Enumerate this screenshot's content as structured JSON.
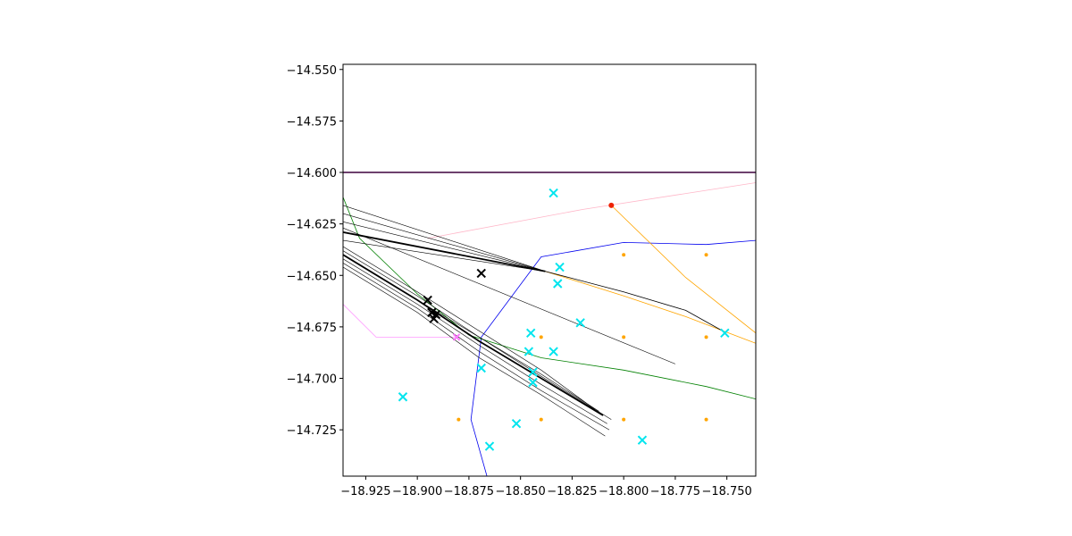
{
  "chart_data": {
    "type": "line",
    "title": "",
    "xlabel": "",
    "ylabel": "",
    "xlim": [
      -18.936,
      -18.736
    ],
    "ylim": [
      -14.7475,
      -14.5475
    ],
    "grid": false,
    "x_ticks": [
      -18.925,
      -18.9,
      -18.875,
      -18.85,
      -18.825,
      -18.8,
      -18.775,
      -18.75
    ],
    "x_tick_labels": [
      "−18.925",
      "−18.900",
      "−18.875",
      "−18.850",
      "−18.825",
      "−18.800",
      "−18.775",
      "−18.750"
    ],
    "y_ticks": [
      -14.55,
      -14.575,
      -14.6,
      -14.625,
      -14.65,
      -14.675,
      -14.7,
      -14.725
    ],
    "y_tick_labels": [
      "−14.550",
      "−14.575",
      "−14.600",
      "−14.625",
      "−14.650",
      "−14.675",
      "−14.700",
      "−14.725"
    ],
    "series": [
      {
        "color": "#3d003d",
        "width": 1.6,
        "points": [
          [
            -18.936,
            -14.6
          ],
          [
            -18.736,
            -14.6
          ]
        ]
      },
      {
        "color": "#ffb6c8",
        "width": 0.8,
        "points": [
          [
            -18.895,
            -14.632
          ],
          [
            -18.82,
            -14.618
          ],
          [
            -18.736,
            -14.605
          ]
        ]
      },
      {
        "color": "#ff99ff",
        "width": 0.8,
        "points": [
          [
            -18.936,
            -14.664
          ],
          [
            -18.92,
            -14.68
          ],
          [
            -18.882,
            -14.68
          ]
        ]
      },
      {
        "color": "#0000ee",
        "width": 0.8,
        "points": [
          [
            -18.865,
            -14.752
          ],
          [
            -18.874,
            -14.72
          ],
          [
            -18.869,
            -14.68
          ],
          [
            -18.84,
            -14.641
          ],
          [
            -18.8,
            -14.634
          ],
          [
            -18.76,
            -14.635
          ],
          [
            -18.736,
            -14.633
          ]
        ]
      },
      {
        "color": "#008000",
        "width": 0.8,
        "points": [
          [
            -18.936,
            -14.612
          ],
          [
            -18.928,
            -14.632
          ],
          [
            -18.9,
            -14.659
          ],
          [
            -18.875,
            -14.679
          ],
          [
            -18.84,
            -14.69
          ],
          [
            -18.8,
            -14.696
          ],
          [
            -18.76,
            -14.704
          ],
          [
            -18.736,
            -14.71
          ]
        ]
      },
      {
        "color": "#ffa500",
        "width": 0.8,
        "points": [
          [
            -18.806,
            -14.616
          ],
          [
            -18.77,
            -14.651
          ],
          [
            -18.736,
            -14.678
          ]
        ]
      },
      {
        "color": "#ffa500",
        "width": 0.8,
        "points": [
          [
            -18.838,
            -14.648
          ],
          [
            -18.8,
            -14.66
          ],
          [
            -18.77,
            -14.67
          ],
          [
            -18.736,
            -14.683
          ]
        ]
      },
      {
        "color": "#000000",
        "width": 1.8,
        "points": [
          [
            -18.936,
            -14.629
          ],
          [
            -18.838,
            -14.648
          ]
        ]
      },
      {
        "color": "#000000",
        "width": 0.8,
        "points": [
          [
            -18.838,
            -14.648
          ],
          [
            -18.8,
            -14.658
          ],
          [
            -18.77,
            -14.667
          ],
          [
            -18.752,
            -14.677
          ]
        ]
      },
      {
        "color": "#000000",
        "width": 0.6,
        "points": [
          [
            -18.936,
            -14.616
          ],
          [
            -18.838,
            -14.648
          ]
        ]
      },
      {
        "color": "#000000",
        "width": 0.6,
        "points": [
          [
            -18.936,
            -14.62
          ],
          [
            -18.838,
            -14.648
          ]
        ]
      },
      {
        "color": "#000000",
        "width": 0.6,
        "points": [
          [
            -18.936,
            -14.624
          ],
          [
            -18.838,
            -14.648
          ]
        ]
      },
      {
        "color": "#000000",
        "width": 0.6,
        "points": [
          [
            -18.936,
            -14.633
          ],
          [
            -18.838,
            -14.648
          ]
        ]
      },
      {
        "color": "#000000",
        "width": 0.6,
        "points": [
          [
            -18.936,
            -14.627
          ],
          [
            -18.775,
            -14.693
          ]
        ]
      },
      {
        "color": "#000000",
        "width": 1.8,
        "points": [
          [
            -18.936,
            -14.64
          ],
          [
            -18.9,
            -14.662
          ],
          [
            -18.87,
            -14.682
          ],
          [
            -18.84,
            -14.7
          ],
          [
            -18.81,
            -14.718
          ]
        ]
      },
      {
        "color": "#000000",
        "width": 0.6,
        "points": [
          [
            -18.936,
            -14.638
          ],
          [
            -18.9,
            -14.66
          ],
          [
            -18.87,
            -14.68
          ],
          [
            -18.84,
            -14.698
          ],
          [
            -18.812,
            -14.716
          ]
        ]
      },
      {
        "color": "#000000",
        "width": 0.6,
        "points": [
          [
            -18.936,
            -14.642
          ],
          [
            -18.9,
            -14.664
          ],
          [
            -18.87,
            -14.684
          ],
          [
            -18.84,
            -14.703
          ],
          [
            -18.808,
            -14.722
          ]
        ]
      },
      {
        "color": "#000000",
        "width": 0.6,
        "points": [
          [
            -18.936,
            -14.646
          ],
          [
            -18.9,
            -14.668
          ],
          [
            -18.87,
            -14.69
          ],
          [
            -18.84,
            -14.708
          ],
          [
            -18.809,
            -14.728
          ]
        ]
      },
      {
        "color": "#000000",
        "width": 0.6,
        "points": [
          [
            -18.936,
            -14.636
          ],
          [
            -18.9,
            -14.658
          ],
          [
            -18.87,
            -14.677
          ],
          [
            -18.84,
            -14.696
          ],
          [
            -18.814,
            -14.715
          ]
        ]
      },
      {
        "color": "#000000",
        "width": 0.6,
        "points": [
          [
            -18.936,
            -14.644
          ],
          [
            -18.9,
            -14.666
          ],
          [
            -18.87,
            -14.687
          ],
          [
            -18.84,
            -14.706
          ],
          [
            -18.807,
            -14.725
          ]
        ]
      },
      {
        "color": "#000000",
        "width": 0.6,
        "points": [
          [
            -18.936,
            -14.64
          ],
          [
            -18.9,
            -14.662
          ],
          [
            -18.87,
            -14.68
          ],
          [
            -18.84,
            -14.699
          ],
          [
            -18.806,
            -14.72
          ]
        ]
      }
    ],
    "scatter": [
      {
        "marker": "x",
        "color": "#00e5ee",
        "size": 4.5,
        "points": [
          [
            -18.834,
            -14.61
          ],
          [
            -18.831,
            -14.646
          ],
          [
            -18.832,
            -14.654
          ],
          [
            -18.821,
            -14.673
          ],
          [
            -18.845,
            -14.678
          ],
          [
            -18.846,
            -14.687
          ],
          [
            -18.834,
            -14.687
          ],
          [
            -18.869,
            -14.695
          ],
          [
            -18.844,
            -14.697
          ],
          [
            -18.844,
            -14.702
          ],
          [
            -18.907,
            -14.709
          ],
          [
            -18.852,
            -14.722
          ],
          [
            -18.865,
            -14.733
          ],
          [
            -18.791,
            -14.73
          ],
          [
            -18.751,
            -14.678
          ]
        ]
      },
      {
        "marker": "x",
        "color": "#000000",
        "size": 4.5,
        "points": [
          [
            -18.895,
            -14.662
          ],
          [
            -18.893,
            -14.668
          ],
          [
            -18.892,
            -14.671
          ],
          [
            -18.891,
            -14.669
          ],
          [
            -18.869,
            -14.649
          ]
        ]
      },
      {
        "marker": "x",
        "color": "#ff77ff",
        "size": 3.5,
        "points": [
          [
            -18.881,
            -14.68
          ]
        ]
      },
      {
        "marker": "dot",
        "color": "#ffa500",
        "size": 2.0,
        "points": [
          [
            -18.8,
            -14.64
          ],
          [
            -18.76,
            -14.64
          ],
          [
            -18.84,
            -14.68
          ],
          [
            -18.8,
            -14.68
          ],
          [
            -18.76,
            -14.68
          ],
          [
            -18.88,
            -14.72
          ],
          [
            -18.84,
            -14.72
          ],
          [
            -18.8,
            -14.72
          ],
          [
            -18.76,
            -14.72
          ]
        ]
      },
      {
        "marker": "dot",
        "color": "#ee2200",
        "size": 3.0,
        "points": [
          [
            -18.806,
            -14.616
          ]
        ]
      }
    ]
  }
}
